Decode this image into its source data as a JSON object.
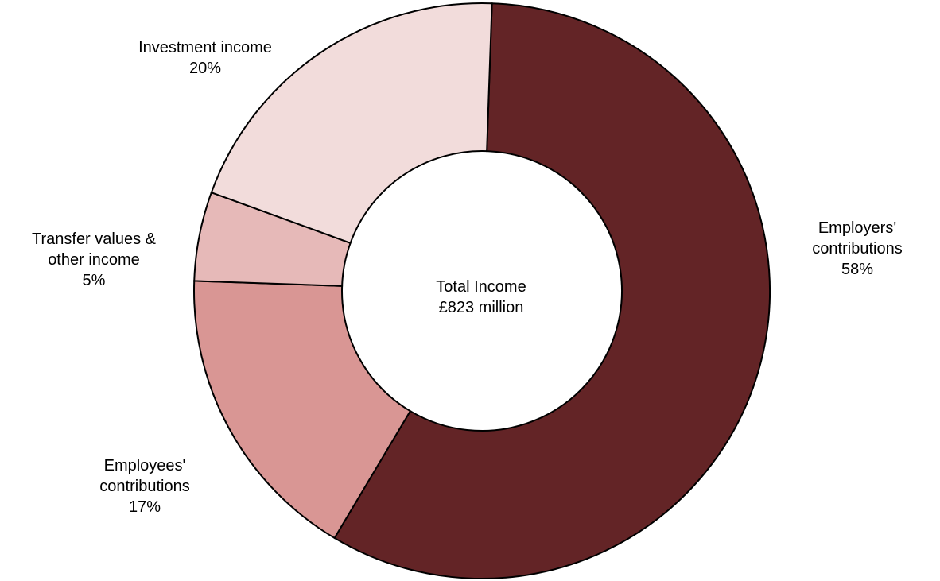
{
  "chart_data": {
    "type": "pie",
    "donut": true,
    "center_label": {
      "line1": "Total Income",
      "line2": "£823 million"
    },
    "slices": [
      {
        "label_lines": [
          "Employers'",
          "contributions"
        ],
        "value": 58,
        "value_label": "58%",
        "color": "#632426"
      },
      {
        "label_lines": [
          "Employees'",
          "contributions"
        ],
        "value": 17,
        "value_label": "17%",
        "color": "#d99694"
      },
      {
        "label_lines": [
          "Transfer values &",
          "other income"
        ],
        "value": 5,
        "value_label": "5%",
        "color": "#e6b9b8"
      },
      {
        "label_lines": [
          "Investment income"
        ],
        "value": 20,
        "value_label": "20%",
        "color": "#f2dcdb"
      }
    ],
    "start_angle_deg": 2,
    "direction": "clockwise",
    "legend": "none"
  }
}
